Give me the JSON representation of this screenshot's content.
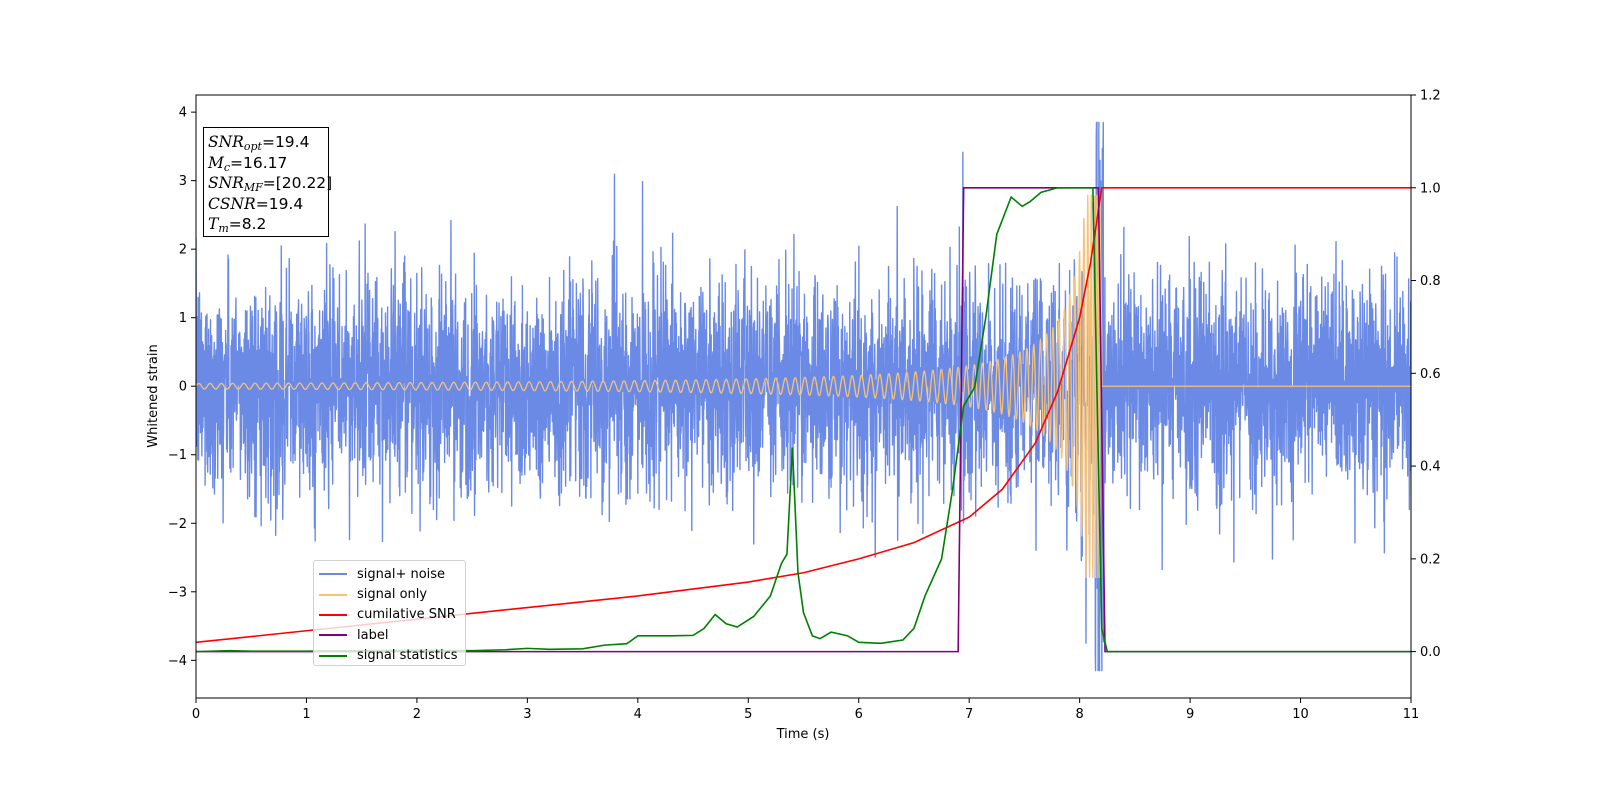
{
  "chart_data": {
    "type": "line",
    "xlabel": "Time (s)",
    "ylabel": "Whitened strain",
    "xlim": [
      0,
      11
    ],
    "ylim": [
      -4.55,
      4.25
    ],
    "y2lim": [
      -0.1,
      1.2
    ],
    "x_ticks": [
      "0",
      "1",
      "2",
      "3",
      "4",
      "5",
      "6",
      "7",
      "8",
      "9",
      "10",
      "11"
    ],
    "y_ticks": [
      "−4",
      "−3",
      "−2",
      "−1",
      "0",
      "1",
      "2",
      "3",
      "4"
    ],
    "y2_ticks": [
      "0.0",
      "0.2",
      "0.4",
      "0.6",
      "0.8",
      "1.0",
      "1.2"
    ],
    "grid": false,
    "legend_position": "lower-left",
    "info_box": {
      "snr_opt": {
        "base": "SNR",
        "sub": "opt",
        "value": "=19.4"
      },
      "mc": {
        "base": "M",
        "sub": "c",
        "value": "=16.17"
      },
      "snr_mf": {
        "base": "SNR",
        "sub": "MF",
        "value": "=[20.22]"
      },
      "csnr": {
        "base": "CSNR",
        "value": "=19.4"
      },
      "tm": {
        "base": "T",
        "sub": "m",
        "value": "=8.2"
      }
    },
    "series": [
      {
        "name": "signal+ noise",
        "axis": "left",
        "color": "#6a8ae6",
        "description_values": "whitened strain noise, std ~0.8, range about -2.7 to 3.1 with spikes to 3.85 and -4.15 near t=8.2"
      },
      {
        "name": "signal only",
        "axis": "left",
        "color": "#f5c27a",
        "chirp": {
          "t_merge": 8.2,
          "amp_start": 0.04,
          "amp_peak": 2.8,
          "f_start": 8,
          "f_end": 50
        }
      },
      {
        "name": "cumilative SNR",
        "axis": "right",
        "color": "#ff0000",
        "x": [
          0,
          1,
          2,
          3,
          4,
          5,
          5.5,
          6,
          6.5,
          7,
          7.3,
          7.6,
          7.8,
          8.0,
          8.1,
          8.2,
          11
        ],
        "values": [
          0.02,
          0.045,
          0.07,
          0.095,
          0.12,
          0.15,
          0.17,
          0.2,
          0.235,
          0.29,
          0.35,
          0.45,
          0.56,
          0.72,
          0.84,
          1.0,
          1.0
        ]
      },
      {
        "name": "label",
        "axis": "right",
        "color": "#800080",
        "x": [
          0,
          6.9,
          6.95,
          8.17,
          8.23,
          11
        ],
        "values": [
          0,
          0,
          1,
          1,
          0,
          0
        ]
      },
      {
        "name": "signal statistics",
        "axis": "right",
        "color": "#008000",
        "x": [
          0,
          0.3,
          0.5,
          1,
          1.5,
          2,
          2.5,
          2.8,
          3.0,
          3.2,
          3.5,
          3.7,
          3.9,
          4.0,
          4.3,
          4.5,
          4.6,
          4.7,
          4.8,
          4.9,
          5.05,
          5.2,
          5.3,
          5.35,
          5.4,
          5.45,
          5.5,
          5.58,
          5.65,
          5.75,
          5.9,
          6.0,
          6.2,
          6.4,
          6.5,
          6.6,
          6.75,
          6.85,
          6.95,
          7.05,
          7.15,
          7.25,
          7.38,
          7.48,
          7.55,
          7.65,
          7.8,
          8.0,
          8.12,
          8.2,
          8.25,
          11
        ],
        "values": [
          0.0,
          0.002,
          0.001,
          0.001,
          0.002,
          0.003,
          0.002,
          0.004,
          0.007,
          0.005,
          0.006,
          0.014,
          0.017,
          0.034,
          0.034,
          0.035,
          0.05,
          0.08,
          0.06,
          0.053,
          0.076,
          0.12,
          0.19,
          0.21,
          0.44,
          0.17,
          0.084,
          0.034,
          0.028,
          0.042,
          0.034,
          0.02,
          0.018,
          0.025,
          0.05,
          0.12,
          0.2,
          0.35,
          0.53,
          0.57,
          0.72,
          0.9,
          0.98,
          0.96,
          0.97,
          0.99,
          1.0,
          1.0,
          1.0,
          0.05,
          0.0,
          0.0
        ]
      }
    ]
  }
}
